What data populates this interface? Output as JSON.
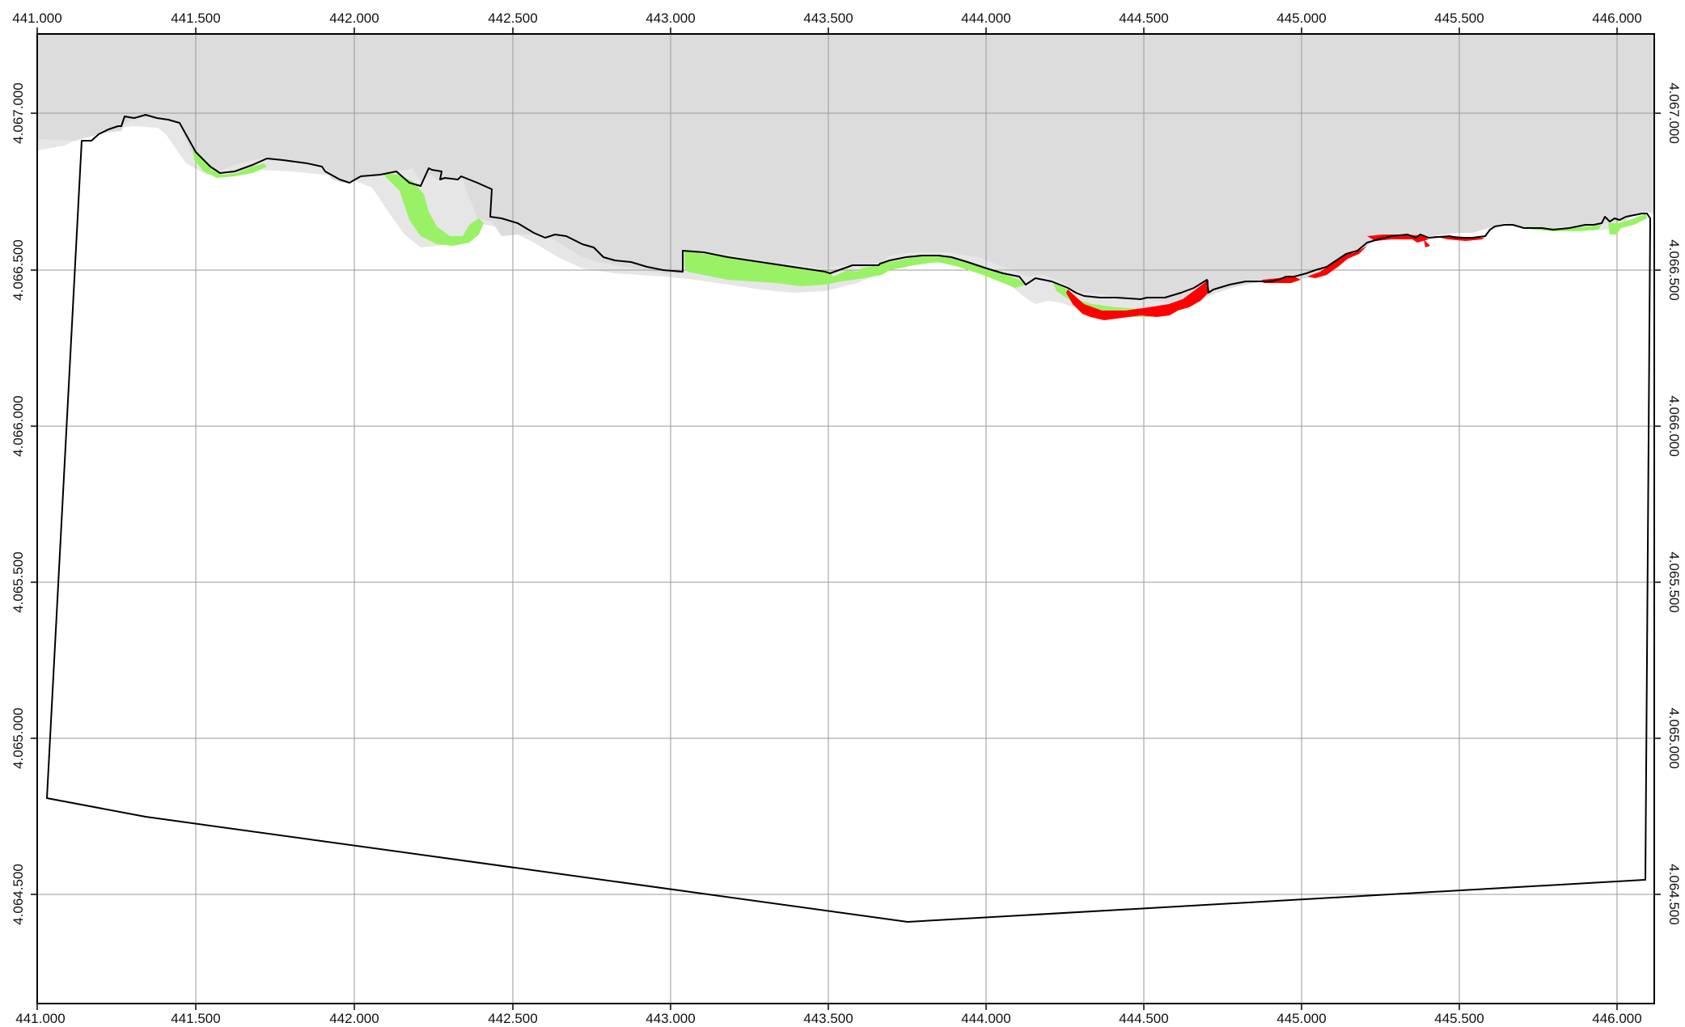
{
  "map": {
    "x_ticks": [
      "441.000",
      "441.500",
      "442.000",
      "442.500",
      "443.000",
      "443.500",
      "444.000",
      "444.500",
      "445.000",
      "445.500",
      "446.000"
    ],
    "y_ticks": [
      "4.067.000",
      "4.066.500",
      "4.066.000",
      "4.065.500",
      "4.065.000",
      "4.064.500"
    ],
    "colors": {
      "sea": "#dcdcdc",
      "sea_shadow": "#e6e6e6",
      "accretion": "#99f266",
      "erosion": "#ff0000",
      "boundary": "#000000",
      "grid": "#9a9a9a"
    }
  }
}
